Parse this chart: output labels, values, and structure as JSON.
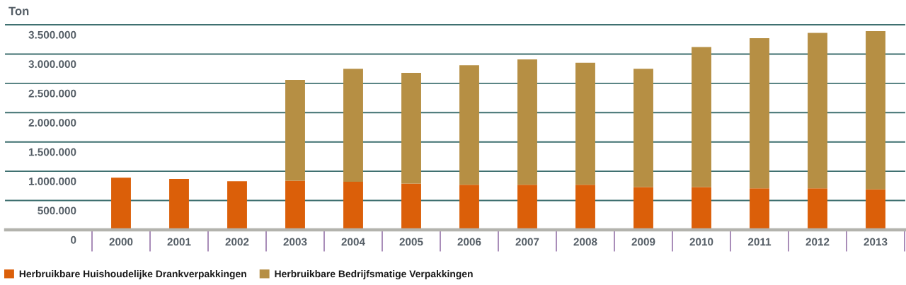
{
  "chart_data": {
    "type": "bar",
    "ylabel": "Ton",
    "categories": [
      "2000",
      "2001",
      "2002",
      "2003",
      "2004",
      "2005",
      "2006",
      "2007",
      "2008",
      "2009",
      "2010",
      "2011",
      "2012",
      "2013"
    ],
    "stacked": true,
    "series": [
      {
        "name": "Herbruikbare Huishoudelijke Drankverpakkingen",
        "color": "#db5f09",
        "values": [
          890000,
          870000,
          830000,
          840000,
          820000,
          790000,
          770000,
          770000,
          770000,
          730000,
          730000,
          710000,
          710000,
          690000
        ]
      },
      {
        "name": "Herbruikbare Bedrijfsmatige Verpakkingen",
        "color": "#b68f44",
        "values": [
          null,
          null,
          null,
          1720000,
          1930000,
          1890000,
          2040000,
          2140000,
          2080000,
          2020000,
          2390000,
          2560000,
          2650000,
          2700000
        ]
      }
    ],
    "ylim": [
      0,
      3500000
    ],
    "yticks": [
      0,
      {
        "value": 500000,
        "label": "500.000"
      },
      {
        "value": 1000000,
        "label": "1.000.000"
      },
      {
        "value": 1500000,
        "label": "1.500.000"
      },
      {
        "value": 2000000,
        "label": "2.000.000"
      },
      {
        "value": 2500000,
        "label": "2.500.000"
      },
      {
        "value": 3000000,
        "label": "3.000.000"
      },
      {
        "value": 3500000,
        "label": "3.500.000"
      }
    ],
    "grid": "y",
    "legend": "bottom"
  }
}
